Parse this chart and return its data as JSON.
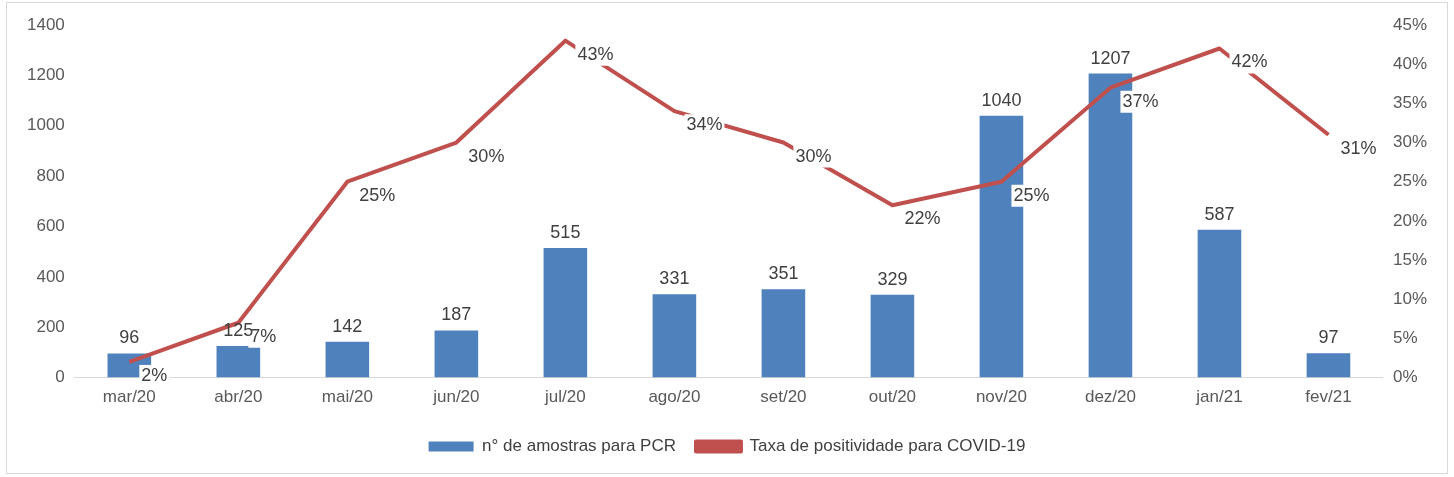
{
  "chart_data": {
    "type": "bar",
    "categories": [
      "mar/20",
      "abr/20",
      "mai/20",
      "jun/20",
      "jul/20",
      "ago/20",
      "set/20",
      "out/20",
      "nov/20",
      "dez/20",
      "jan/21",
      "fev/21"
    ],
    "series": [
      {
        "name": "n° de amostras para PCR",
        "color": "#4f81bd",
        "values": [
          96,
          125,
          142,
          187,
          515,
          331,
          351,
          329,
          1040,
          1207,
          587,
          97
        ],
        "value_labels": [
          "96",
          "125",
          "142",
          "187",
          "515",
          "331",
          "351",
          "329",
          "1040",
          "1207",
          "587",
          "97"
        ]
      },
      {
        "name": "Taxa de positividade para COVID-19",
        "type": "line",
        "axis": "y2",
        "color": "#c0504d",
        "values": [
          2,
          7,
          25,
          30,
          43,
          34,
          30,
          22,
          25,
          37,
          42,
          31
        ],
        "value_labels": [
          "2%",
          "7%",
          "25%",
          "30%",
          "43%",
          "34%",
          "30%",
          "22%",
          "25%",
          "37%",
          "42%",
          "31%"
        ]
      }
    ],
    "ylim": [
      0,
      1400
    ],
    "yticks": [
      0,
      200,
      400,
      600,
      800,
      1000,
      1200,
      1400
    ],
    "y2lim": [
      0,
      45
    ],
    "y2ticks": [
      {
        "value": 0,
        "label": "0%"
      },
      {
        "value": 5,
        "label": "5%"
      },
      {
        "value": 10,
        "label": "10%"
      },
      {
        "value": 15,
        "label": "15%"
      },
      {
        "value": 20,
        "label": "20%"
      },
      {
        "value": 25,
        "label": "25%"
      },
      {
        "value": 30,
        "label": "30%"
      },
      {
        "value": 35,
        "label": "35%"
      },
      {
        "value": 40,
        "label": "40%"
      },
      {
        "value": 45,
        "label": "45%"
      }
    ],
    "grid": false,
    "legend": "bottom",
    "marker": "none",
    "line_style": "solid"
  }
}
